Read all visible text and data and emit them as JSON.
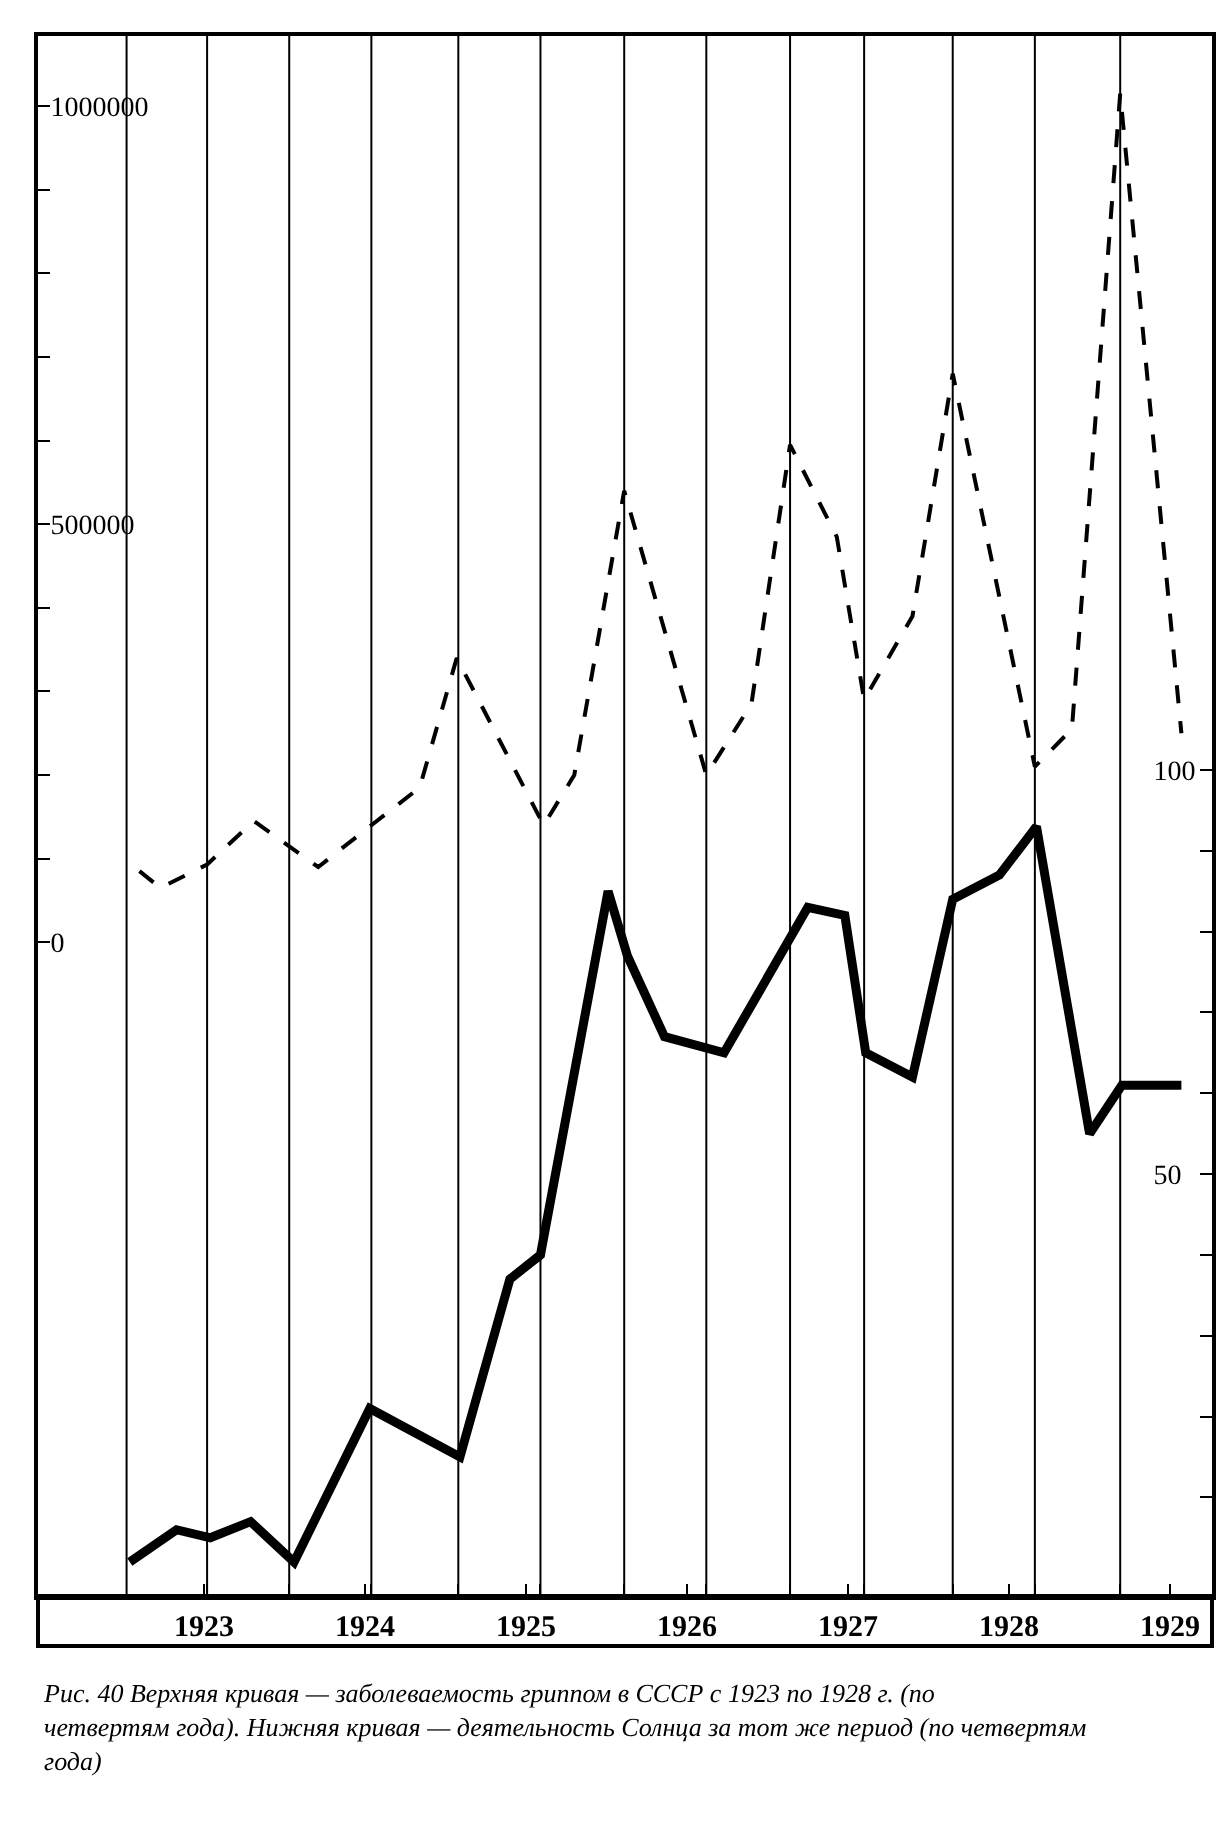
{
  "chart_data": {
    "type": "line",
    "annotations": [
      "Рис. 40 Верхняя кривая — заболеваемость гриппом в СССР с 1923 по 1928 г. (по четвертям года). Нижняя кривая — деятельность Солнца за тот же период (по четвертям года)"
    ],
    "series": [
      {
        "color": "#000000",
        "line_style": "dashed",
        "x": [
          1922.6,
          1922.73,
          1923.02,
          1923.31,
          1923.71,
          1924.04,
          1924.34,
          1924.57,
          1925.11,
          1925.3,
          1925.61,
          1926.12,
          1926.4,
          1926.64,
          1926.93,
          1927.1,
          1927.4,
          1927.65,
          1928.16,
          1928.39,
          1928.69,
          1929.07
        ],
        "values": [
          85000,
          65000,
          93000,
          145000,
          90000,
          140000,
          185000,
          340000,
          140000,
          200000,
          540000,
          200000,
          285000,
          595000,
          485000,
          290000,
          390000,
          680000,
          210000,
          255000,
          1015000,
          250000
        ]
      },
      {
        "color": "#000000",
        "line_style": "solid",
        "axis": "y2",
        "x": [
          1922.54,
          1922.83,
          1923.04,
          1923.29,
          1923.56,
          1924.03,
          1924.59,
          1924.9,
          1925.09,
          1925.51,
          1925.63,
          1925.86,
          1926.23,
          1926.75,
          1926.98,
          1927.11,
          1927.4,
          1927.65,
          1927.94,
          1928.17,
          1928.5,
          1928.7,
          1929.07
        ],
        "values": [
          2,
          6,
          5,
          7,
          2,
          21,
          15,
          37,
          40,
          85,
          77,
          67,
          65,
          83,
          82,
          65,
          62,
          84,
          87,
          93,
          55,
          61,
          61
        ]
      }
    ],
    "xlim": [
      1921.97,
      1929.26
    ],
    "xticks": [
      1923,
      1924,
      1925,
      1926,
      1927,
      1928,
      1929,
      {
        "value": 1922.52,
        "label": null
      },
      {
        "value": 1923.02,
        "label": null
      },
      {
        "value": 1923.53,
        "label": null
      },
      {
        "value": 1924.04,
        "label": null
      },
      {
        "value": 1924.58,
        "label": null
      },
      {
        "value": 1925.09,
        "label": null
      },
      {
        "value": 1925.61,
        "label": null
      },
      {
        "value": 1926.12,
        "label": null
      },
      {
        "value": 1926.64,
        "label": null
      },
      {
        "value": 1927.1,
        "label": null
      },
      {
        "value": 1927.65,
        "label": null
      },
      {
        "value": 1928.16,
        "label": null
      },
      {
        "value": 1928.69,
        "label": null
      }
    ],
    "ylim": [
      -782000,
      1084000
    ],
    "yticks": [
      0,
      {
        "value": 100000,
        "label": null
      },
      {
        "value": 200000,
        "label": null
      },
      {
        "value": 300000,
        "label": null
      },
      {
        "value": 400000,
        "label": null
      },
      500000,
      {
        "value": 600000,
        "label": null
      },
      {
        "value": 700000,
        "label": null
      },
      {
        "value": 800000,
        "label": null
      },
      {
        "value": 900000,
        "label": null
      },
      1000000
    ],
    "y2lim": [
      -2.2,
      190.8
    ],
    "y2ticks": [
      {
        "value": 10,
        "label": null
      },
      {
        "value": 20,
        "label": null
      },
      {
        "value": 30,
        "label": null
      },
      {
        "value": 40,
        "label": null
      },
      50,
      {
        "value": 60,
        "label": null
      },
      {
        "value": 70,
        "label": null
      },
      {
        "value": 80,
        "label": null
      },
      {
        "value": 90,
        "label": null
      },
      100
    ],
    "grid": "x"
  }
}
